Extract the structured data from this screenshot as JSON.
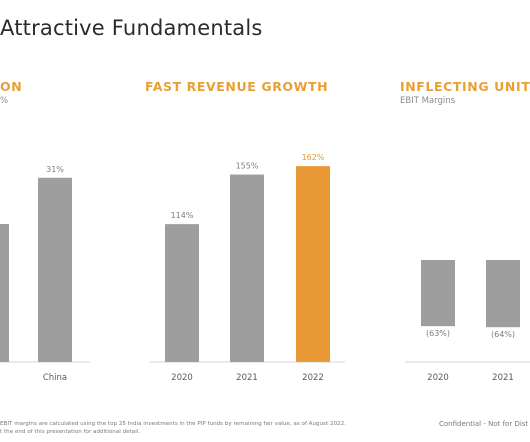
{
  "page": {
    "title": "Attractive Fundamentals",
    "footnote_line1": "EBIT margins are calculated using the top 25 India investments in the PIP funds by remaining fair value, as of August 2022.",
    "footnote_line2": "t the end of this presentation for additional detail.",
    "confidential": "Confidential - Not for Dist"
  },
  "colors": {
    "bar_gray": "#9e9e9e",
    "bar_highlight": "#e99a37",
    "accent_title": "#e8a035",
    "axis_line": "#d4d4d4"
  },
  "chart_data": [
    {
      "type": "bar",
      "title": "ON",
      "subtitle": "%",
      "categories": [
        "",
        "China"
      ],
      "values": [
        null,
        31
      ],
      "labels": [
        "",
        "31%"
      ],
      "ylim": [
        0,
        35
      ]
    },
    {
      "type": "bar",
      "title": "FAST REVENUE GROWTH",
      "subtitle": "",
      "categories": [
        "2020",
        "2021",
        "2022"
      ],
      "values": [
        114,
        155,
        162
      ],
      "labels": [
        "114%",
        "155%",
        "162%"
      ],
      "highlight_index": 2,
      "ylim": [
        0,
        172
      ]
    },
    {
      "type": "bar",
      "title": "INFLECTING UNIT EC",
      "subtitle": "EBIT Margins",
      "categories": [
        "2020",
        "2021"
      ],
      "values": [
        -63,
        -64
      ],
      "labels": [
        "(63%)",
        "(64%)"
      ],
      "ylim": [
        -100,
        0
      ]
    }
  ]
}
